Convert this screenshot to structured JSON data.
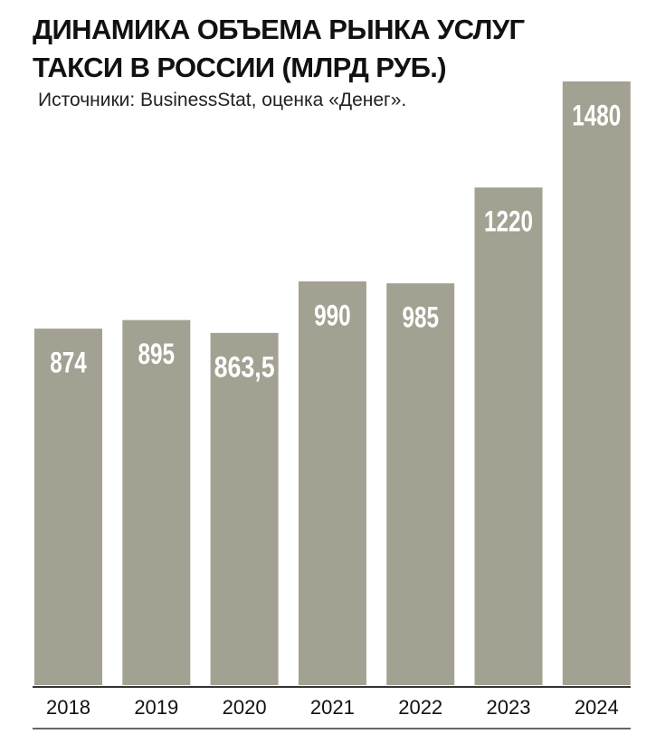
{
  "chart_data": {
    "type": "bar",
    "title": "ДИНАМИКА ОБЪЕМА РЫНКА УСЛУГ ТАКСИ В РОССИИ (МЛРД РУБ.)",
    "subtitle": "Источники: BusinessStat, оценка «Денег».",
    "categories": [
      "2018",
      "2019",
      "2020",
      "2021",
      "2022",
      "2023",
      "2024"
    ],
    "values": [
      874,
      895,
      863.5,
      990,
      985,
      1220,
      1480
    ],
    "value_labels": [
      "874",
      "895",
      "863,5",
      "990",
      "985",
      "1220",
      "1480"
    ],
    "color": "#a3a192"
  }
}
